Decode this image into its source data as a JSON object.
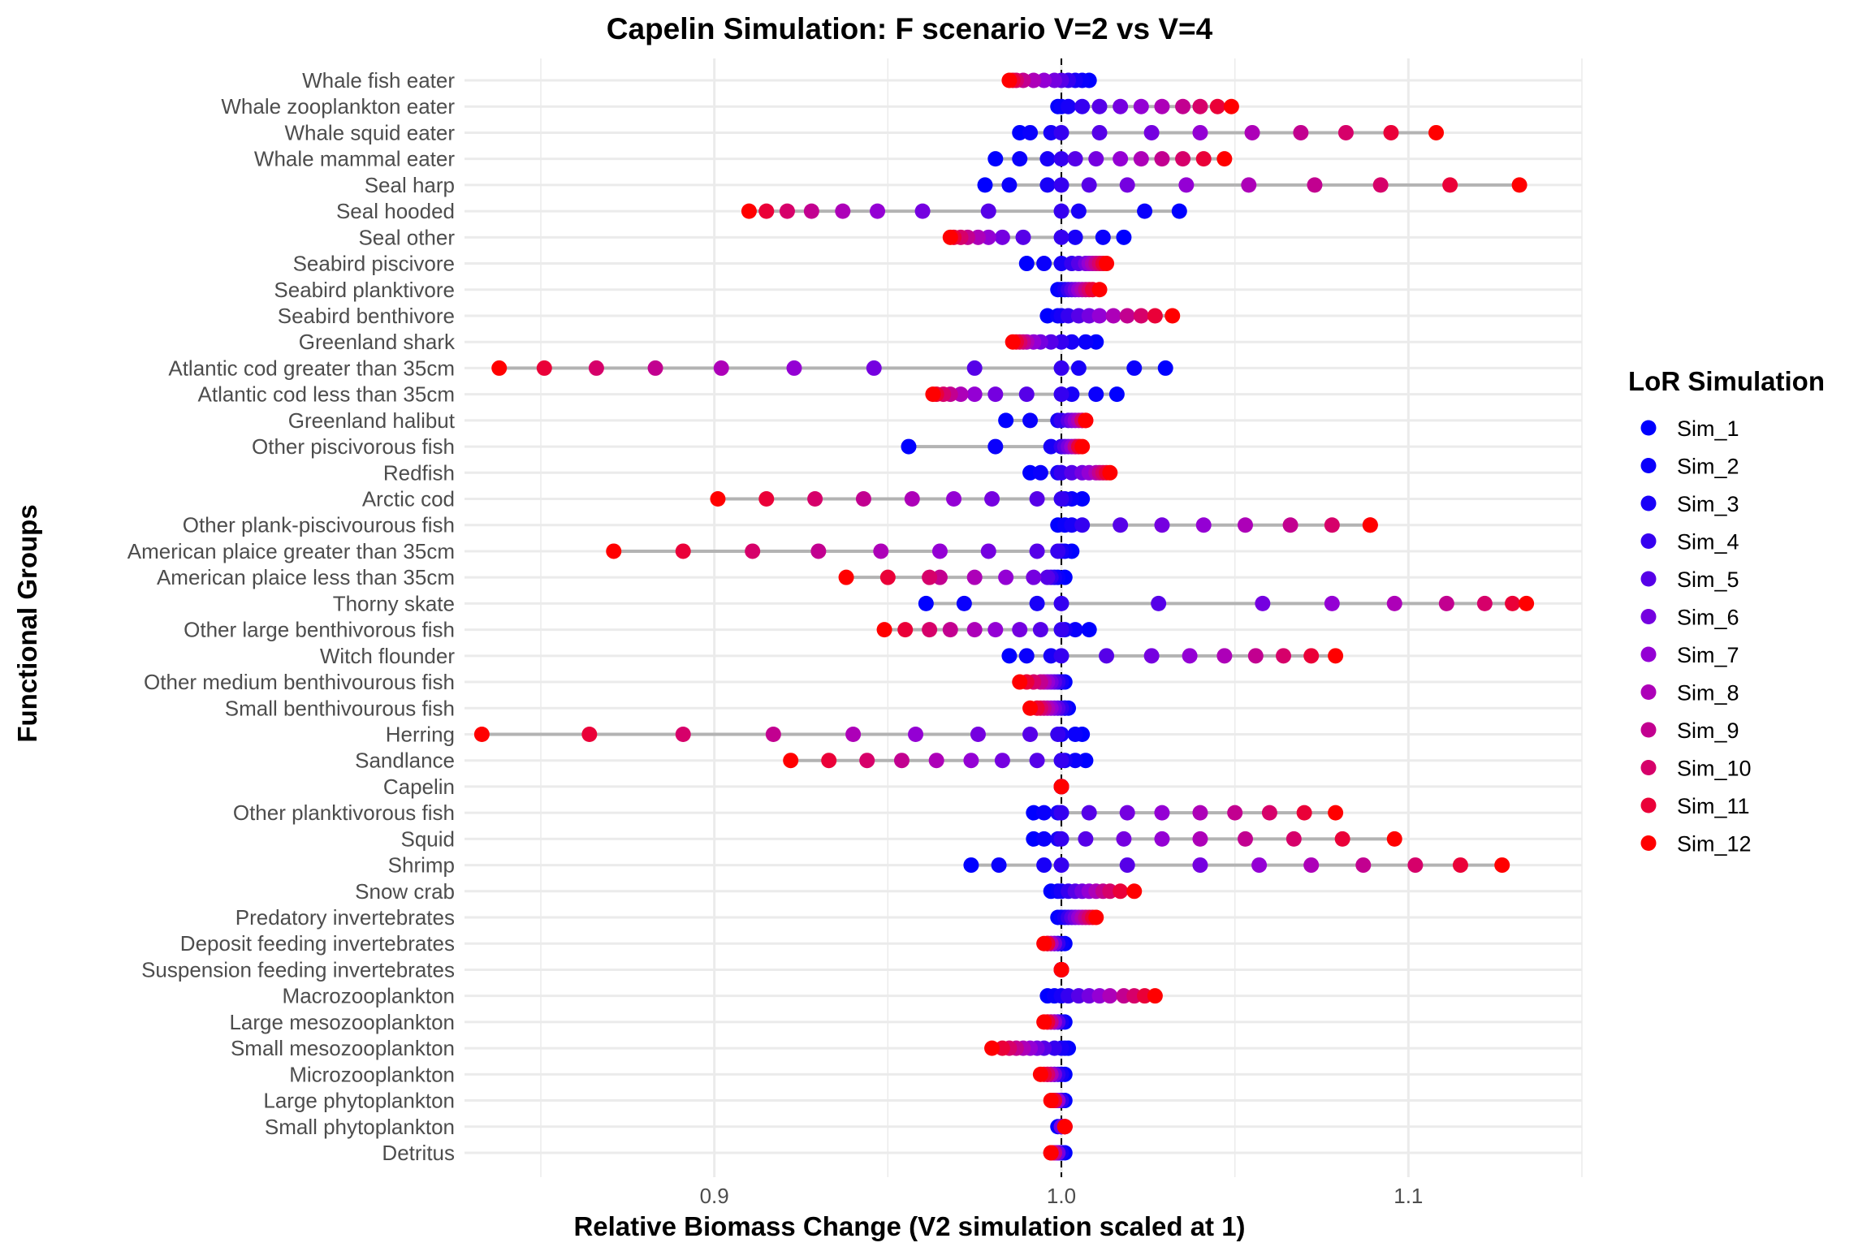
{
  "chart_data": {
    "type": "dot-range",
    "title": "Capelin Simulation: F scenario V=2 vs V=4",
    "xlabel": "Relative Biomass Change (V2 simulation scaled at 1)",
    "ylabel": "Functional Groups",
    "xlim": [
      0.828,
      1.15
    ],
    "x_ticks": [
      0.9,
      1.0,
      1.1
    ],
    "x_tick_labels": [
      "0.9",
      "1.0",
      "1.1"
    ],
    "reference_line": 1.0,
    "grid": true,
    "legend": {
      "title": "LoR Simulation",
      "placement": "right",
      "entries": [
        {
          "name": "Sim_1",
          "color": "#0000ff"
        },
        {
          "name": "Sim_2",
          "color": "#0a00fc"
        },
        {
          "name": "Sim_3",
          "color": "#1800f8"
        },
        {
          "name": "Sim_4",
          "color": "#3500f0"
        },
        {
          "name": "Sim_5",
          "color": "#5600e8"
        },
        {
          "name": "Sim_6",
          "color": "#7500e0"
        },
        {
          "name": "Sim_7",
          "color": "#9400d4"
        },
        {
          "name": "Sim_8",
          "color": "#ad00b8"
        },
        {
          "name": "Sim_9",
          "color": "#c20090"
        },
        {
          "name": "Sim_10",
          "color": "#d6006a"
        },
        {
          "name": "Sim_11",
          "color": "#ea0038"
        },
        {
          "name": "Sim_12",
          "color": "#ff0000"
        }
      ]
    },
    "categories": [
      "Whale fish eater",
      "Whale zooplankton eater",
      "Whale squid eater",
      "Whale mammal eater",
      "Seal harp",
      "Seal hooded",
      "Seal other",
      "Seabird piscivore",
      "Seabird planktivore",
      "Seabird benthivore",
      "Greenland shark",
      "Atlantic cod greater than 35cm",
      "Atlantic cod less than 35cm",
      "Greenland halibut",
      "Other piscivorous fish",
      "Redfish",
      "Arctic cod",
      "Other plank-piscivourous fish",
      "American plaice greater than 35cm",
      "American plaice less than 35cm",
      "Thorny skate",
      "Other large benthivorous fish",
      "Witch flounder",
      "Other medium benthivourous fish",
      "Small benthivourous fish",
      "Herring",
      "Sandlance",
      "Capelin",
      "Other planktivorous fish",
      "Squid",
      "Shrimp",
      "Snow crab",
      "Predatory invertebrates",
      "Deposit feeding invertebrates",
      "Suspension feeding invertebrates",
      "Macrozooplankton",
      "Large mesozooplankton",
      "Small mesozooplankton",
      "Microzooplankton",
      "Large phytoplankton",
      "Small phytoplankton",
      "Detritus"
    ],
    "values": [
      [
        1.008,
        1.006,
        1.004,
        1.002,
        1.0,
        0.998,
        0.995,
        0.992,
        0.989,
        0.987,
        0.986,
        0.985
      ],
      [
        0.999,
        1.0,
        1.002,
        1.006,
        1.011,
        1.017,
        1.023,
        1.029,
        1.035,
        1.04,
        1.045,
        1.049
      ],
      [
        0.988,
        0.991,
        0.997,
        1.0,
        1.011,
        1.026,
        1.04,
        1.055,
        1.069,
        1.082,
        1.095,
        1.108
      ],
      [
        0.981,
        0.988,
        0.996,
        1.0,
        1.004,
        1.01,
        1.017,
        1.023,
        1.029,
        1.035,
        1.041,
        1.047
      ],
      [
        0.978,
        0.985,
        0.996,
        1.0,
        1.008,
        1.019,
        1.036,
        1.054,
        1.073,
        1.092,
        1.112,
        1.132
      ],
      [
        1.034,
        1.024,
        1.005,
        1.0,
        0.979,
        0.96,
        0.947,
        0.937,
        0.928,
        0.921,
        0.915,
        0.91
      ],
      [
        1.018,
        1.012,
        1.004,
        1.0,
        0.989,
        0.983,
        0.979,
        0.976,
        0.973,
        0.971,
        0.969,
        0.968
      ],
      [
        0.99,
        0.995,
        1.0,
        1.003,
        1.005,
        1.007,
        1.008,
        1.009,
        1.01,
        1.011,
        1.012,
        1.013
      ],
      [
        0.999,
        1.0,
        1.001,
        1.002,
        1.003,
        1.004,
        1.005,
        1.006,
        1.007,
        1.008,
        1.009,
        1.011
      ],
      [
        0.996,
        0.999,
        1.0,
        1.002,
        1.005,
        1.008,
        1.011,
        1.015,
        1.019,
        1.023,
        1.027,
        1.032
      ],
      [
        1.01,
        1.007,
        1.003,
        1.0,
        0.997,
        0.994,
        0.992,
        0.99,
        0.989,
        0.988,
        0.987,
        0.986
      ],
      [
        1.03,
        1.021,
        1.005,
        1.0,
        0.975,
        0.946,
        0.923,
        0.902,
        0.883,
        0.866,
        0.851,
        0.838
      ],
      [
        1.016,
        1.01,
        1.003,
        1.0,
        0.99,
        0.981,
        0.975,
        0.971,
        0.968,
        0.966,
        0.964,
        0.963
      ],
      [
        0.984,
        0.991,
        0.999,
        1.0,
        1.002,
        1.003,
        1.004,
        1.005,
        1.006,
        1.006,
        1.007,
        1.007
      ],
      [
        0.956,
        0.981,
        0.997,
        1.0,
        1.001,
        1.002,
        1.003,
        1.004,
        1.004,
        1.005,
        1.005,
        1.006
      ],
      [
        0.991,
        0.994,
        0.999,
        1.0,
        1.003,
        1.006,
        1.008,
        1.01,
        1.011,
        1.012,
        1.013,
        1.014
      ],
      [
        1.006,
        1.003,
        1.001,
        1.0,
        0.993,
        0.98,
        0.969,
        0.957,
        0.943,
        0.929,
        0.915,
        0.901
      ],
      [
        0.999,
        1.001,
        1.003,
        1.006,
        1.017,
        1.029,
        1.041,
        1.053,
        1.066,
        1.078,
        1.089,
        1.089
      ],
      [
        1.003,
        1.001,
        1.0,
        0.999,
        0.993,
        0.979,
        0.965,
        0.948,
        0.93,
        0.911,
        0.891,
        0.871
      ],
      [
        1.001,
        0.999,
        0.998,
        0.997,
        0.996,
        0.992,
        0.984,
        0.975,
        0.965,
        0.962,
        0.95,
        0.938
      ],
      [
        0.961,
        0.972,
        0.993,
        1.0,
        1.028,
        1.058,
        1.078,
        1.096,
        1.111,
        1.122,
        1.13,
        1.134
      ],
      [
        1.008,
        1.004,
        1.001,
        1.0,
        0.994,
        0.988,
        0.981,
        0.975,
        0.968,
        0.962,
        0.955,
        0.949
      ],
      [
        0.985,
        0.99,
        0.997,
        1.0,
        1.013,
        1.026,
        1.037,
        1.047,
        1.056,
        1.064,
        1.072,
        1.079
      ],
      [
        1.001,
        1.0,
        1.0,
        0.999,
        0.998,
        0.997,
        0.996,
        0.995,
        0.994,
        0.992,
        0.99,
        0.988
      ],
      [
        1.002,
        1.001,
        1.001,
        1.0,
        0.999,
        0.998,
        0.997,
        0.996,
        0.995,
        0.994,
        0.993,
        0.991
      ],
      [
        1.006,
        1.004,
        1.0,
        0.999,
        0.991,
        0.976,
        0.958,
        0.94,
        0.917,
        0.891,
        0.864,
        0.833
      ],
      [
        1.007,
        1.004,
        1.001,
        1.0,
        0.993,
        0.983,
        0.974,
        0.964,
        0.954,
        0.944,
        0.933,
        0.922
      ],
      [
        1.0,
        1.0,
        1.0,
        1.0,
        1.0,
        1.0,
        1.0,
        1.0,
        1.0,
        1.0,
        1.0,
        1.0
      ],
      [
        0.992,
        0.995,
        0.999,
        1.0,
        1.008,
        1.019,
        1.029,
        1.04,
        1.05,
        1.06,
        1.07,
        1.079
      ],
      [
        0.992,
        0.995,
        0.999,
        1.0,
        1.007,
        1.018,
        1.029,
        1.04,
        1.053,
        1.067,
        1.081,
        1.096
      ],
      [
        0.974,
        0.982,
        0.995,
        1.0,
        1.019,
        1.04,
        1.057,
        1.072,
        1.087,
        1.102,
        1.115,
        1.127
      ],
      [
        0.997,
        0.999,
        1.0,
        1.002,
        1.004,
        1.006,
        1.008,
        1.01,
        1.012,
        1.014,
        1.017,
        1.021
      ],
      [
        0.999,
        1.0,
        1.001,
        1.002,
        1.003,
        1.004,
        1.005,
        1.006,
        1.007,
        1.008,
        1.009,
        1.01
      ],
      [
        1.001,
        1.0,
        0.999,
        0.999,
        0.998,
        0.998,
        0.997,
        0.997,
        0.996,
        0.996,
        0.996,
        0.995
      ],
      [
        1.0,
        1.0,
        1.0,
        1.0,
        1.0,
        1.0,
        1.0,
        1.0,
        1.0,
        1.0,
        1.0,
        1.0
      ],
      [
        0.996,
        0.998,
        1.0,
        1.002,
        1.005,
        1.008,
        1.011,
        1.014,
        1.018,
        1.021,
        1.024,
        1.027
      ],
      [
        1.001,
        1.0,
        1.0,
        0.999,
        0.999,
        0.998,
        0.998,
        0.997,
        0.997,
        0.996,
        0.996,
        0.995
      ],
      [
        1.002,
        1.001,
        1.0,
        0.998,
        0.995,
        0.993,
        0.991,
        0.989,
        0.987,
        0.985,
        0.983,
        0.98
      ],
      [
        1.001,
        1.0,
        1.0,
        0.999,
        0.998,
        0.998,
        0.997,
        0.997,
        0.996,
        0.996,
        0.995,
        0.994
      ],
      [
        1.001,
        1.0,
        1.0,
        1.0,
        0.999,
        0.999,
        0.999,
        0.998,
        0.998,
        0.998,
        0.998,
        0.997
      ],
      [
        0.999,
        1.0,
        1.0,
        1.0,
        1.0,
        1.0,
        1.001,
        1.001,
        1.001,
        1.001,
        1.001,
        1.001
      ],
      [
        1.001,
        1.0,
        1.0,
        0.999,
        0.999,
        0.999,
        0.998,
        0.998,
        0.998,
        0.997,
        0.997,
        0.997
      ]
    ]
  }
}
